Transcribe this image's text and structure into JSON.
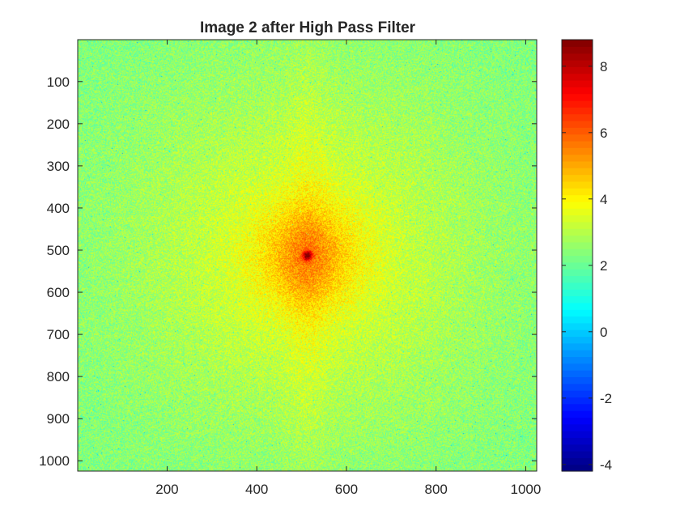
{
  "chart_data": {
    "type": "heatmap",
    "title": "Image 2 after High Pass Filter",
    "xlabel": "",
    "ylabel": "",
    "xlim": [
      0.5,
      1024.5
    ],
    "ylim": [
      0.5,
      1024.5
    ],
    "y_direction": "reversed",
    "x_ticks": [
      200,
      400,
      600,
      800,
      1000
    ],
    "y_ticks": [
      100,
      200,
      300,
      400,
      500,
      600,
      700,
      800,
      900,
      1000
    ],
    "colormap": "jet",
    "colorbar": {
      "range": [
        -4.2,
        8.8
      ],
      "ticks": [
        -4,
        -2,
        0,
        2,
        4,
        6,
        8
      ],
      "placement": "right"
    },
    "data_description_values": {
      "center": [
        512,
        512
      ],
      "center_value": 8.8,
      "central_region_value": 5.2,
      "mid_region_value": 3.5,
      "background_value": 2.3
    },
    "grid": false
  },
  "colors": {
    "axis": "#262626",
    "background": "#ffffff"
  }
}
